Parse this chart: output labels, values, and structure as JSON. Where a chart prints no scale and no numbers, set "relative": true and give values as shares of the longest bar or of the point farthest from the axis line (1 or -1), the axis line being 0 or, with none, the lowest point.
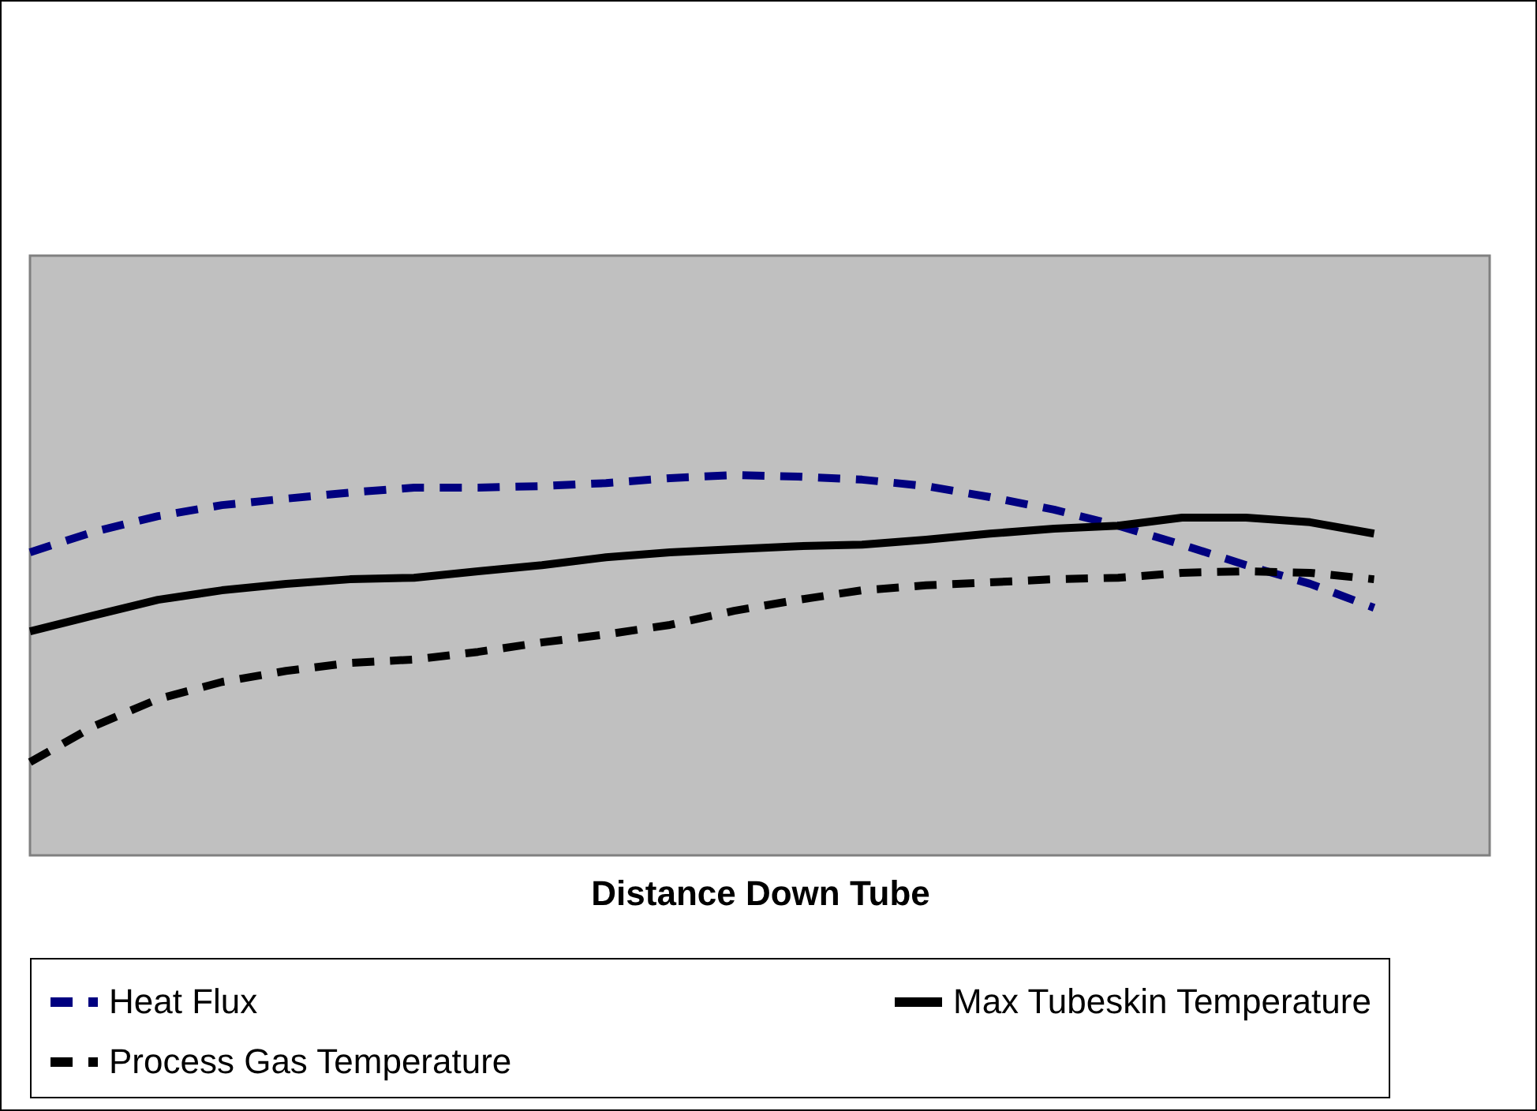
{
  "chart_data": {
    "type": "line",
    "relative": true,
    "xlabel": "Distance Down Tube",
    "legend": "bottom",
    "marker": "none",
    "categories": [
      null,
      null,
      null,
      null,
      null,
      null,
      null,
      null,
      null,
      null,
      null,
      null,
      null,
      null,
      null,
      null,
      null,
      null,
      null,
      null,
      null,
      null
    ],
    "series": [
      {
        "name": "Heat Flux",
        "color": "#000080",
        "line_style": "dashed",
        "values": [
          0.797,
          0.851,
          0.892,
          0.921,
          0.938,
          0.954,
          0.967,
          0.967,
          0.971,
          0.979,
          0.992,
          1,
          0.996,
          0.988,
          0.971,
          0.942,
          0.909,
          0.867,
          0.817,
          0.763,
          0.714,
          0.651
        ]
      },
      {
        "name": "Max Tubeskin Temperature",
        "color": "#000000",
        "line_style": "solid",
        "values": [
          0.589,
          0.631,
          0.672,
          0.697,
          0.714,
          0.726,
          0.73,
          0.747,
          0.763,
          0.784,
          0.797,
          0.805,
          0.813,
          0.817,
          0.83,
          0.846,
          0.859,
          0.867,
          0.888,
          0.888,
          0.876,
          0.846
        ]
      },
      {
        "name": "Process Gas Temperature",
        "color": "#000000",
        "line_style": "dashed",
        "values": [
          0.245,
          0.34,
          0.411,
          0.456,
          0.485,
          0.506,
          0.515,
          0.535,
          0.56,
          0.581,
          0.606,
          0.643,
          0.672,
          0.697,
          0.71,
          0.718,
          0.726,
          0.73,
          0.743,
          0.747,
          0.743,
          0.726
        ]
      }
    ]
  }
}
